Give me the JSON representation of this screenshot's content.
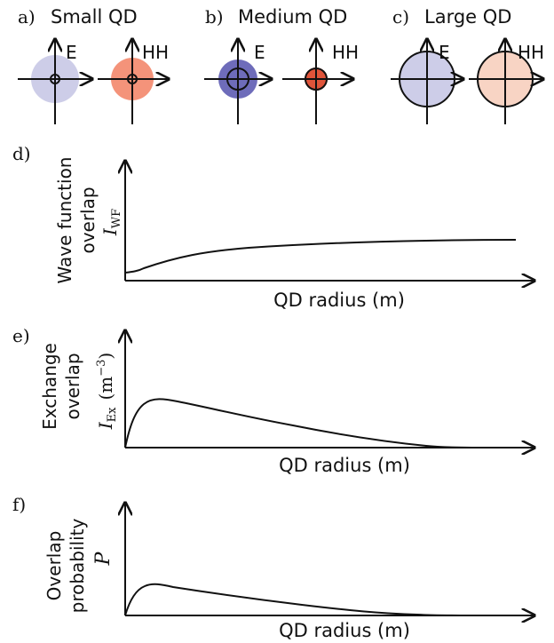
{
  "colors": {
    "e_light": "#cdcde8",
    "e_dark": "#6e6cba",
    "hh_mid": "#f4937a",
    "hh_dark": "#e0543a",
    "hh_light": "#f8d4c4"
  },
  "top": {
    "panels": [
      {
        "tag": "a)",
        "title": "Small QD",
        "left_label": "E",
        "right_label": "HH"
      },
      {
        "tag": "b)",
        "title": "Medium QD",
        "left_label": "E",
        "right_label": "HH"
      },
      {
        "tag": "c)",
        "title": "Large QD",
        "left_label": "E",
        "right_label": "HH"
      }
    ]
  },
  "plots": [
    {
      "tag": "d)",
      "ylabel_lines": [
        "Wave function",
        "overlap"
      ],
      "symbol_main": "I",
      "symbol_sub": "WF",
      "symbol_sup": "",
      "unit": "",
      "xlabel": "QD radius (m)"
    },
    {
      "tag": "e)",
      "ylabel_lines": [
        "Exchange",
        "overlap"
      ],
      "symbol_main": "I",
      "symbol_sub": "Ex",
      "symbol_sup": "−3",
      "unit": "(m",
      "xlabel": "QD radius (m)"
    },
    {
      "tag": "f)",
      "ylabel_lines": [
        "Overlap",
        "probability"
      ],
      "symbol_main": "P",
      "symbol_sub": "",
      "symbol_sup": "",
      "unit": "",
      "xlabel": "QD radius (m)"
    }
  ]
}
